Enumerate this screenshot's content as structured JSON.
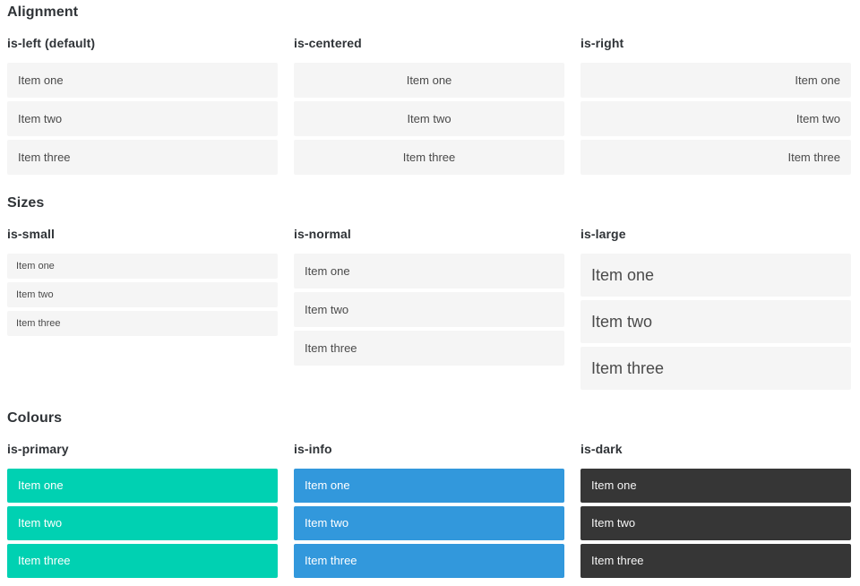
{
  "colors": {
    "primary": "#00d1b2",
    "info": "#3298dc",
    "dark": "#363636",
    "item_bg": "#f5f5f5",
    "item_text": "#4a4a4a",
    "heading_text": "#2f3337"
  },
  "sections": [
    {
      "title": "Alignment",
      "columns": [
        {
          "label": "is-left (default)",
          "items": [
            "Item one",
            "Item two",
            "Item three"
          ]
        },
        {
          "label": "is-centered",
          "items": [
            "Item one",
            "Item two",
            "Item three"
          ]
        },
        {
          "label": "is-right",
          "items": [
            "Item one",
            "Item two",
            "Item three"
          ]
        }
      ]
    },
    {
      "title": "Sizes",
      "columns": [
        {
          "label": "is-small",
          "items": [
            "Item one",
            "Item two",
            "Item three"
          ]
        },
        {
          "label": "is-normal",
          "items": [
            "Item one",
            "Item two",
            "Item three"
          ]
        },
        {
          "label": "is-large",
          "items": [
            "Item one",
            "Item two",
            "Item three"
          ]
        }
      ]
    },
    {
      "title": "Colours",
      "columns": [
        {
          "label": "is-primary",
          "items": [
            "Item one",
            "Item two",
            "Item three"
          ]
        },
        {
          "label": "is-info",
          "items": [
            "Item one",
            "Item two",
            "Item three"
          ]
        },
        {
          "label": "is-dark",
          "items": [
            "Item one",
            "Item two",
            "Item three"
          ]
        }
      ]
    }
  ]
}
